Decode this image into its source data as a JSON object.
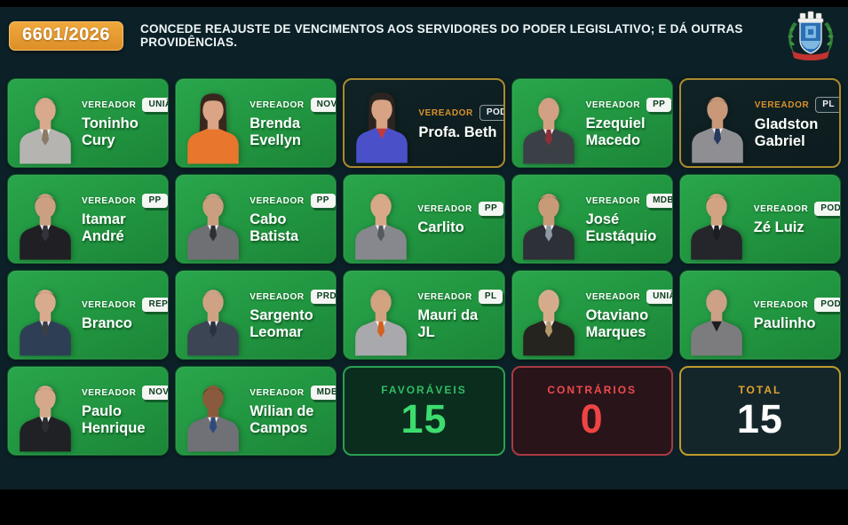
{
  "header": {
    "bill_number": "6601/2026",
    "title": "CONCEDE REAJUSTE DE VENCIMENTOS AOS SERVIDORES DO PODER LEGISLATIVO; E DÁ OUTRAS PROVIDÊNCIAS.",
    "crest_icon": "municipal-coat-of-arms"
  },
  "colors": {
    "background": "#0c2127",
    "letterbox": "#000000",
    "badge_orange": "#e59a30",
    "vote_green": "#219540",
    "no_vote_dark": "#0d1d21",
    "no_vote_border_gold": "#ab8a2e",
    "favor_green": "#3ddc6e",
    "against_red": "#ef4444",
    "total_gold": "#e0a42c"
  },
  "role_label": "VEREADOR",
  "members": [
    {
      "name": "Toninho Cury",
      "party": "UNIÃO",
      "vote": "favoravel",
      "photo": {
        "skin": "#d9a98c",
        "hair": "#857b70",
        "suit": "#b6b4b1",
        "shirt": "#f4f2ee",
        "tie": "#8a7a66",
        "hairstyle": "short"
      }
    },
    {
      "name": "Brenda Evellyn",
      "party": "NOVO",
      "vote": "favoravel",
      "photo": {
        "skin": "#dba487",
        "hair": "#38271d",
        "suit": "#e8762d",
        "shirt": "#e8762d",
        "tie": "",
        "hairstyle": "long"
      }
    },
    {
      "name": "Profa. Beth",
      "party": "PODE",
      "vote": "sem-voto",
      "photo": {
        "skin": "#d8a284",
        "hair": "#2c2420",
        "suit": "#4a51c8",
        "shirt": "#c23b3b",
        "tie": "",
        "hairstyle": "long"
      }
    },
    {
      "name": "Ezequiel Macedo",
      "party": "PP",
      "vote": "favoravel",
      "photo": {
        "skin": "#d2a083",
        "hair": "#988f86",
        "suit": "#3b4046",
        "shirt": "#f4f2ee",
        "tie": "#8c2f39",
        "hairstyle": "short"
      }
    },
    {
      "name": "Gladston Gabriel",
      "party": "PL",
      "vote": "sem-voto",
      "photo": {
        "skin": "#c89878",
        "hair": "#2e2620",
        "suit": "#8e8e93",
        "shirt": "#f4f2ee",
        "tie": "#273a5e",
        "hairstyle": "short"
      }
    },
    {
      "name": "Itamar André",
      "party": "PP",
      "vote": "favoravel",
      "photo": {
        "skin": "#cba080",
        "hair": "#262019",
        "suit": "#202024",
        "shirt": "#f4f2ee",
        "tie": "#33333b",
        "hairstyle": "short"
      }
    },
    {
      "name": "Cabo Batista",
      "party": "PP",
      "vote": "favoravel",
      "photo": {
        "skin": "#c99f80",
        "hair": "#4b453d",
        "suit": "#6f7074",
        "shirt": "#f4f2ee",
        "tie": "#2e3036",
        "hairstyle": "short"
      }
    },
    {
      "name": "Carlito",
      "party": "PP",
      "vote": "favoravel",
      "photo": {
        "skin": "#d8a988",
        "hair": "#9c7b4e",
        "suit": "#86888d",
        "shirt": "#f4f2ee",
        "tie": "#555a60",
        "hairstyle": "short"
      }
    },
    {
      "name": "José Eustáquio",
      "party": "MDB",
      "vote": "favoravel",
      "photo": {
        "skin": "#c79a78",
        "hair": "#211b16",
        "suit": "#2d3037",
        "shirt": "#f4f2ee",
        "tie": "#8e9aa5",
        "hairstyle": "short"
      }
    },
    {
      "name": "Zé Luiz",
      "party": "PODE",
      "vote": "favoravel",
      "photo": {
        "skin": "#d2a382",
        "hair": "#2a211b",
        "suit": "#24262c",
        "shirt": "#f4f2ee",
        "tie": "#1c1d22",
        "hairstyle": "short"
      }
    },
    {
      "name": "Branco",
      "party": "REP",
      "vote": "favoravel",
      "photo": {
        "skin": "#d8ab8c",
        "hair": "#241c16",
        "suit": "#2e3f55",
        "shirt": "#e9e7e2",
        "tie": "#3a3f46",
        "hairstyle": "short"
      }
    },
    {
      "name": "Sargento Leomar",
      "party": "PRD",
      "vote": "favoravel",
      "photo": {
        "skin": "#cfa284",
        "hair": "#7d776e",
        "suit": "#3c4554",
        "shirt": "#f4f2ee",
        "tie": "#2b3140",
        "hairstyle": "short"
      }
    },
    {
      "name": "Mauri da JL",
      "party": "PL",
      "vote": "favoravel",
      "photo": {
        "skin": "#d2a281",
        "hair": "#8e8880",
        "suit": "#a9a9ad",
        "shirt": "#f4f2ee",
        "tie": "#d2601f",
        "hairstyle": "short"
      }
    },
    {
      "name": "Otaviano Marques",
      "party": "UNIÃO",
      "vote": "favoravel",
      "photo": {
        "skin": "#d6ab8b",
        "hair": "#cfcac2",
        "suit": "#25241f",
        "shirt": "#f4f2ee",
        "tie": "#b49a6a",
        "hairstyle": "short"
      }
    },
    {
      "name": "Paulinho",
      "party": "PODE",
      "vote": "favoravel",
      "photo": {
        "skin": "#cda186",
        "hair": "#8c867e",
        "suit": "#7c7c7e",
        "shirt": "#1d1d1f",
        "tie": "",
        "hairstyle": "short"
      }
    },
    {
      "name": "Paulo Henrique",
      "party": "NOVO",
      "vote": "favoravel",
      "photo": {
        "skin": "#d4a98a",
        "hair": "#35291f",
        "suit": "#202125",
        "shirt": "#f4f2ee",
        "tie": "#2b2d33",
        "hairstyle": "short"
      }
    },
    {
      "name": "Wilian de Campos",
      "party": "MDB",
      "vote": "favoravel",
      "photo": {
        "skin": "#8a5a3c",
        "hair": "#14100c",
        "suit": "#6f7177",
        "shirt": "#f4f2ee",
        "tie": "#2f4a7a",
        "hairstyle": "short"
      }
    }
  ],
  "totals": [
    {
      "id": "favoraveis",
      "label": "FAVORÁVEIS",
      "value": "15",
      "theme": "green"
    },
    {
      "id": "contrarios",
      "label": "CONTRÁRIOS",
      "value": "0",
      "theme": "red"
    },
    {
      "id": "total",
      "label": "TOTAL",
      "value": "15",
      "theme": "gold"
    }
  ]
}
